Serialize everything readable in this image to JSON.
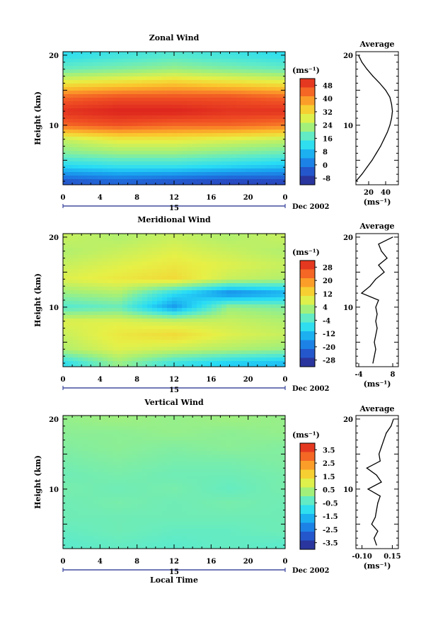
{
  "panels": [
    {
      "title": "Zonal Wind",
      "ylabel": "Height (km)",
      "yticks": [
        "20",
        "10"
      ],
      "xticks": [
        "0",
        "4",
        "8",
        "12",
        "16",
        "20",
        "0"
      ],
      "day_label": "15",
      "date_label": "Dec 2002",
      "unit_label": "(ms⁻¹)",
      "colorbar_ticks": [
        "48",
        "40",
        "32",
        "24",
        "16",
        "8",
        "0",
        "-8"
      ],
      "profile_title": "Average",
      "profile_xticks": [
        "20",
        "40"
      ],
      "profile_xlabel": "(ms⁻¹)",
      "profile_yticks": [
        "20",
        "10"
      ]
    },
    {
      "title": "Meridional Wind",
      "ylabel": "Height (km)",
      "yticks": [
        "20",
        "10"
      ],
      "xticks": [
        "0",
        "4",
        "8",
        "12",
        "16",
        "20",
        "0"
      ],
      "day_label": "15",
      "date_label": "Dec 2002",
      "unit_label": "(ms⁻¹)",
      "colorbar_ticks": [
        "28",
        "20",
        "12",
        "4",
        "-4",
        "-12",
        "-20",
        "-28"
      ],
      "profile_title": "Average",
      "profile_xticks": [
        "-4",
        "8"
      ],
      "profile_xlabel": "(ms⁻¹)",
      "profile_yticks": [
        "20",
        "10"
      ]
    },
    {
      "title": "Vertical Wind",
      "ylabel": "Height (km)",
      "yticks": [
        "20",
        "10"
      ],
      "xticks": [
        "0",
        "4",
        "8",
        "12",
        "16",
        "20",
        "0"
      ],
      "day_label": "15",
      "date_label": "Dec 2002",
      "unit_label": "(ms⁻¹)",
      "colorbar_ticks": [
        "3.5",
        "2.5",
        "1.5",
        "0.5",
        "-0.5",
        "-1.5",
        "-2.5",
        "-3.5"
      ],
      "profile_title": "Average",
      "profile_xticks": [
        "-0.10",
        "0.15"
      ],
      "profile_xlabel": "(ms⁻¹)",
      "profile_yticks": [
        "20",
        "10"
      ],
      "xlabel": "Local Time"
    }
  ],
  "chart_data": [
    {
      "type": "heatmap",
      "title": "Zonal Wind",
      "xlabel": "",
      "ylabel": "Height (km)",
      "xlim": [
        0,
        24
      ],
      "ylim": [
        1.5,
        20.5
      ],
      "colorbar_range": [
        -12,
        52
      ],
      "height_km": [
        2,
        4,
        6,
        8,
        10,
        12,
        14,
        16,
        18,
        20
      ],
      "columns_local_time_h": [
        0,
        6,
        12,
        18,
        24
      ],
      "values_ms": [
        [
          -4,
          10,
          20,
          26,
          44,
          50,
          44,
          30,
          18,
          12
        ],
        [
          -2,
          12,
          22,
          30,
          46,
          52,
          46,
          32,
          20,
          14
        ],
        [
          -4,
          12,
          22,
          30,
          44,
          52,
          46,
          34,
          22,
          16
        ],
        [
          -6,
          10,
          20,
          28,
          44,
          50,
          46,
          32,
          20,
          14
        ],
        [
          -6,
          8,
          18,
          26,
          42,
          50,
          44,
          30,
          18,
          12
        ]
      ],
      "profile": {
        "title": "Average",
        "height_km": [
          2,
          3,
          4,
          5,
          6,
          7,
          8,
          9,
          10,
          11,
          12,
          13,
          14,
          15,
          16,
          17,
          18,
          19,
          20
        ],
        "values": [
          5,
          12,
          18,
          24,
          29,
          34,
          38,
          42,
          45,
          47,
          48,
          47,
          45,
          40,
          33,
          25,
          18,
          12,
          8
        ],
        "xlim": [
          5,
          55
        ]
      }
    },
    {
      "type": "heatmap",
      "title": "Meridional Wind",
      "xlabel": "",
      "ylabel": "Height (km)",
      "xlim": [
        0,
        24
      ],
      "ylim": [
        1.5,
        20.5
      ],
      "colorbar_range": [
        -32,
        32
      ],
      "height_km": [
        2,
        4,
        6,
        8,
        10,
        12,
        14,
        16,
        18,
        20
      ],
      "columns_local_time_h": [
        0,
        6,
        12,
        18,
        24
      ],
      "values_ms": [
        [
          -8,
          4,
          6,
          8,
          -4,
          2,
          8,
          6,
          4,
          6
        ],
        [
          2,
          8,
          10,
          8,
          -2,
          4,
          10,
          8,
          6,
          4
        ],
        [
          -6,
          6,
          12,
          6,
          -16,
          -8,
          12,
          10,
          8,
          6
        ],
        [
          -10,
          4,
          8,
          6,
          2,
          -18,
          6,
          8,
          6,
          4
        ],
        [
          -12,
          2,
          6,
          4,
          0,
          -14,
          4,
          6,
          4,
          6
        ]
      ],
      "profile": {
        "title": "Average",
        "height_km": [
          2,
          3,
          4,
          5,
          6,
          7,
          8,
          9,
          10,
          11,
          12,
          13,
          14,
          15,
          16,
          17,
          18,
          19,
          20
        ],
        "values": [
          1,
          1.5,
          2,
          1.5,
          2,
          2.5,
          2,
          2.5,
          2,
          3,
          -3,
          0,
          2,
          5,
          3,
          6,
          4,
          3,
          8
        ],
        "xlim": [
          -5,
          10
        ]
      }
    },
    {
      "type": "heatmap",
      "title": "Vertical Wind",
      "xlabel": "Local Time",
      "ylabel": "Height (km)",
      "xlim": [
        0,
        24
      ],
      "ylim": [
        1.5,
        20.5
      ],
      "colorbar_range": [
        -4,
        4
      ],
      "height_km": [
        2,
        4,
        6,
        8,
        10,
        12,
        14,
        16,
        18,
        20
      ],
      "columns_local_time_h": [
        0,
        6,
        12,
        18,
        24
      ],
      "values_ms": [
        [
          -0.4,
          -0.3,
          -0.2,
          -0.2,
          -0.1,
          -0.2,
          -0.1,
          0.0,
          0.1,
          0.2
        ],
        [
          -0.3,
          -0.2,
          -0.2,
          -0.1,
          -0.2,
          -0.1,
          0.0,
          0.1,
          0.1,
          0.3
        ],
        [
          -0.4,
          -0.3,
          -0.2,
          -0.2,
          -0.1,
          -0.2,
          -0.1,
          0.0,
          0.2,
          0.2
        ],
        [
          -0.3,
          -0.3,
          -0.2,
          -0.1,
          -0.3,
          -0.2,
          -0.1,
          0.1,
          0.1,
          0.3
        ],
        [
          -0.4,
          -0.2,
          -0.2,
          -0.2,
          -0.1,
          -0.1,
          0.0,
          0.0,
          0.2,
          0.2
        ]
      ],
      "profile": {
        "title": "Average",
        "height_km": [
          2,
          3,
          4,
          5,
          6,
          7,
          8,
          9,
          10,
          11,
          12,
          13,
          14,
          15,
          16,
          17,
          18,
          19,
          20
        ],
        "values": [
          0.02,
          0.0,
          0.03,
          -0.02,
          0.01,
          0.02,
          0.03,
          0.05,
          -0.05,
          0.06,
          0.02,
          -0.06,
          0.05,
          0.04,
          0.06,
          0.08,
          0.1,
          0.14,
          0.16
        ],
        "xlim": [
          -0.15,
          0.2
        ]
      }
    }
  ]
}
